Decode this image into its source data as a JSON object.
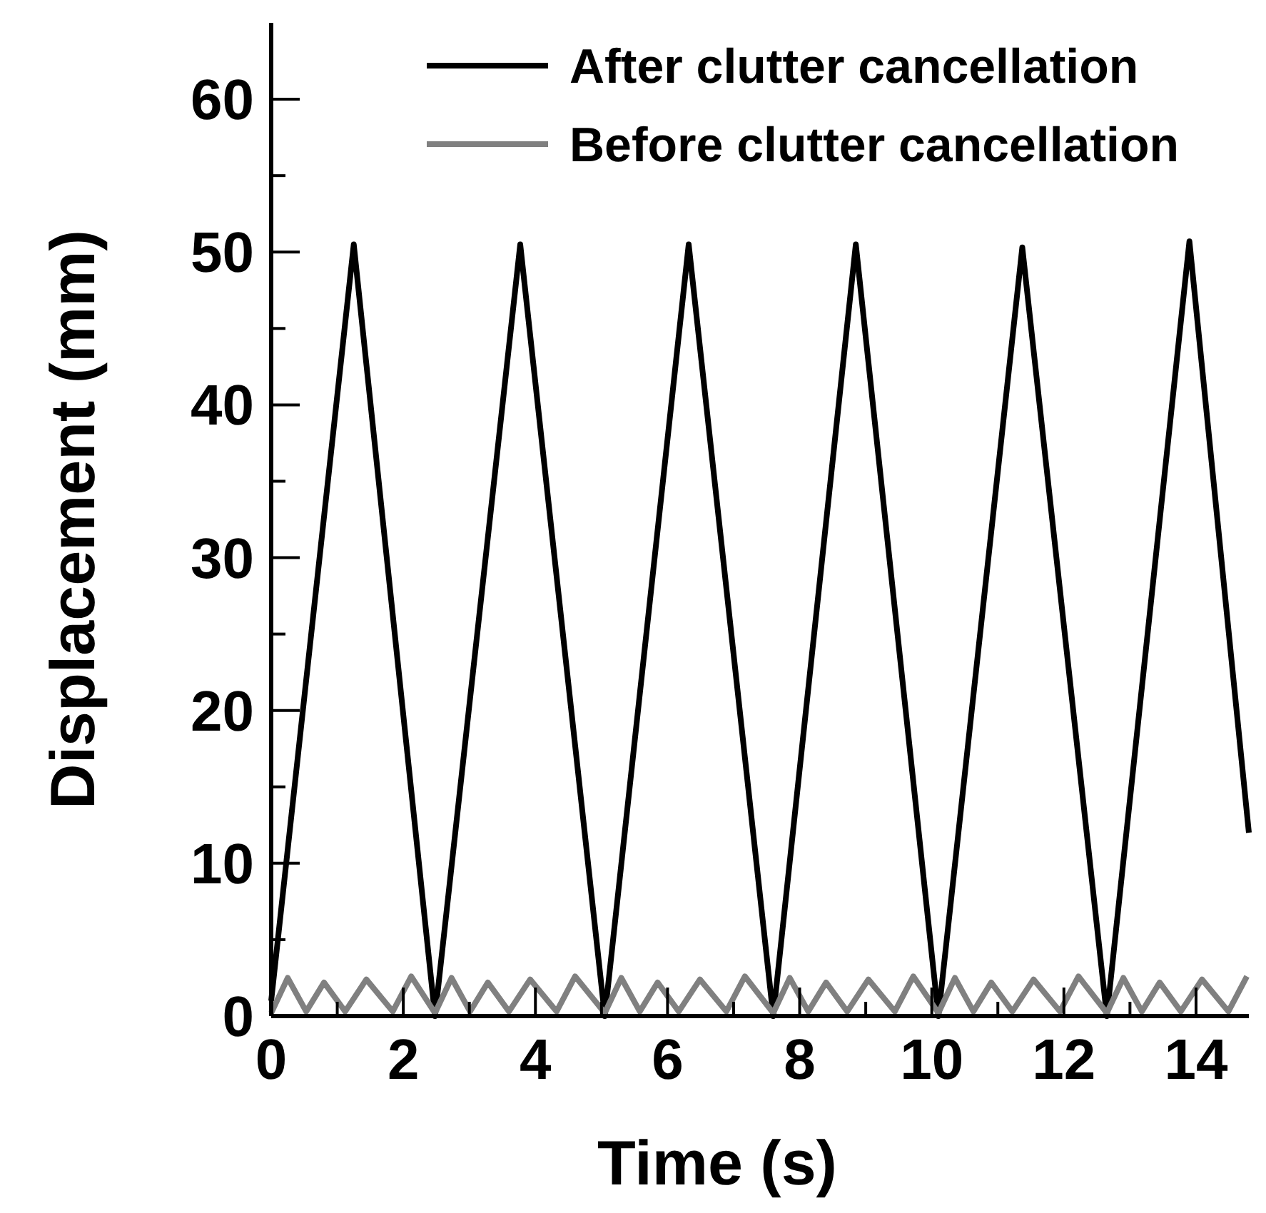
{
  "chart_data": {
    "type": "line",
    "xlabel": "Time (s)",
    "ylabel": "Displacement (mm)",
    "xlim": [
      0,
      14.8
    ],
    "ylim": [
      0,
      65
    ],
    "xticks": [
      0,
      {
        "value": 1,
        "label": null
      },
      2,
      {
        "value": 3,
        "label": null
      },
      4,
      {
        "value": 5,
        "label": null
      },
      6,
      {
        "value": 7,
        "label": null
      },
      8,
      {
        "value": 9,
        "label": null
      },
      10,
      {
        "value": 11,
        "label": null
      },
      12,
      {
        "value": 13,
        "label": null
      },
      14
    ],
    "yticks": [
      0,
      {
        "value": 5,
        "label": null
      },
      10,
      {
        "value": 15,
        "label": null
      },
      20,
      {
        "value": 25,
        "label": null
      },
      30,
      {
        "value": 35,
        "label": null
      },
      40,
      {
        "value": 45,
        "label": null
      },
      50,
      {
        "value": 55,
        "label": null
      },
      60
    ],
    "legend": "top right",
    "grid": false,
    "marker": "none",
    "line_style": "solid",
    "series": [
      {
        "name": "After clutter cancellation",
        "color": "#000000",
        "x": [
          0,
          1.25,
          2.48,
          3.77,
          5.05,
          6.32,
          7.6,
          8.85,
          10.1,
          11.37,
          12.65,
          13.9,
          14.8
        ],
        "values": [
          1,
          50.5,
          0,
          50.5,
          0,
          50.5,
          0,
          50.5,
          0,
          50.3,
          0,
          50.7,
          12
        ]
      },
      {
        "name": "Before clutter cancellation",
        "color": "#808080",
        "x": [
          0,
          0.25,
          0.53,
          0.8,
          1.12,
          1.44,
          1.84,
          2.12,
          2.48,
          2.73,
          3.01,
          3.28,
          3.6,
          3.92,
          4.32,
          4.6,
          5.05,
          5.3,
          5.58,
          5.85,
          6.17,
          6.49,
          6.89,
          7.17,
          7.6,
          7.85,
          8.13,
          8.4,
          8.72,
          9.04,
          9.44,
          9.72,
          10.1,
          10.35,
          10.63,
          10.9,
          11.22,
          11.54,
          11.94,
          12.22,
          12.65,
          12.9,
          13.18,
          13.45,
          13.77,
          14.09,
          14.49,
          14.77
        ],
        "values": [
          0.2,
          2.5,
          0.3,
          2.2,
          0.3,
          2.4,
          0.3,
          2.6,
          0.2,
          2.5,
          0.3,
          2.2,
          0.3,
          2.4,
          0.3,
          2.6,
          0.2,
          2.5,
          0.3,
          2.2,
          0.3,
          2.4,
          0.3,
          2.6,
          0.2,
          2.5,
          0.3,
          2.2,
          0.3,
          2.4,
          0.3,
          2.6,
          0.2,
          2.5,
          0.3,
          2.2,
          0.3,
          2.4,
          0.3,
          2.6,
          0.2,
          2.5,
          0.3,
          2.2,
          0.3,
          2.4,
          0.3,
          2.6
        ]
      }
    ]
  }
}
